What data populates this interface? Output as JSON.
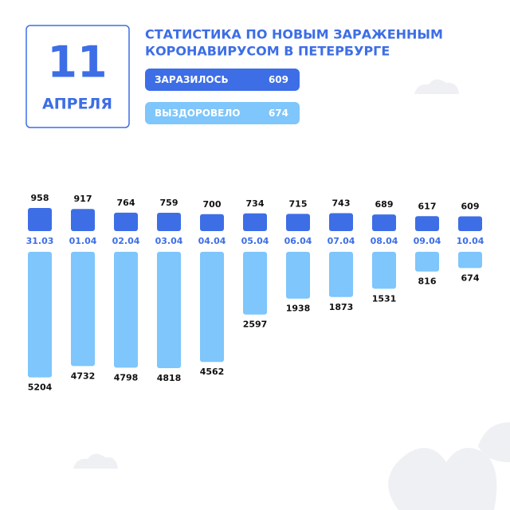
{
  "chart_data": {
    "type": "bar",
    "date_day": "11",
    "date_month": "АПРЕЛЯ",
    "title": [
      "СТАТИСТИКА ПО НОВЫМ ЗАРАЖЕННЫМ",
      "КОРОНАВИРУСОМ В ПЕТЕРБУРГЕ"
    ],
    "categories": [
      "31.03",
      "01.04",
      "02.04",
      "03.04",
      "04.04",
      "05.04",
      "06.04",
      "07.04",
      "08.04",
      "09.04",
      "10.04"
    ],
    "series": [
      {
        "name": "ЗАРАЗИЛОСЬ",
        "color": "#3d6ee6",
        "values": [
          958,
          917,
          764,
          759,
          700,
          734,
          715,
          743,
          689,
          617,
          609
        ]
      },
      {
        "name": "ВЫЗДОРОВЕЛО",
        "color": "#7ec6fb",
        "values": [
          5204,
          4732,
          4798,
          4818,
          4562,
          2597,
          1938,
          1873,
          1531,
          816,
          674
        ]
      }
    ]
  }
}
